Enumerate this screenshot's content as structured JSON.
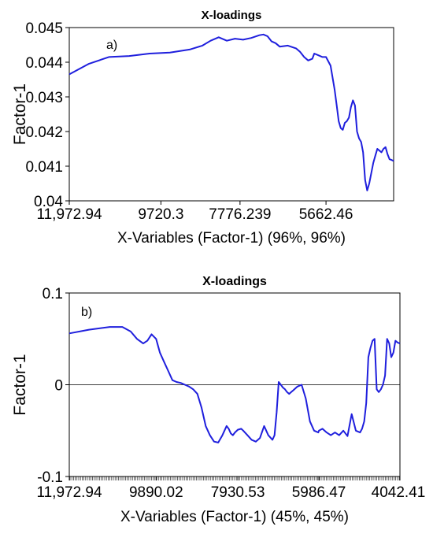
{
  "chart_data": [
    {
      "panel": "a)",
      "type": "line",
      "title": "X-loadings",
      "xlabel": "X-Variables (Factor-1) (96%, 96%)",
      "ylabel": "Factor-1",
      "ylim": [
        0.04,
        0.045
      ],
      "yticks": [
        "0.045",
        "0.044",
        "0.043",
        "0.042",
        "0.041",
        "0.04"
      ],
      "xlim": [
        11972.94,
        4000
      ],
      "xticks": [
        {
          "label": "11,972.94",
          "value": 11972.94
        },
        {
          "label": "9720.3",
          "value": 9720.3
        },
        {
          "label": "7776.239",
          "value": 7776.239
        },
        {
          "label": "5662.46",
          "value": 5662.46
        }
      ],
      "grid": false,
      "series": [
        {
          "color": "#1f1fdd",
          "x": [
            11972.94,
            11500,
            11000,
            10500,
            10000,
            9500,
            9000,
            8700,
            8500,
            8300,
            8100,
            7900,
            7700,
            7500,
            7300,
            7200,
            7100,
            7000,
            6900,
            6800,
            6600,
            6400,
            6300,
            6200,
            6100,
            6000,
            5950,
            5850,
            5750,
            5662,
            5550,
            5450,
            5400,
            5350,
            5300,
            5250,
            5200,
            5150,
            5100,
            5050,
            5000,
            4950,
            4900,
            4850,
            4800,
            4750,
            4700,
            4650,
            4600,
            4550,
            4500,
            4450,
            4400,
            4350,
            4300,
            4250,
            4200,
            4150,
            4100,
            4050,
            4000
          ],
          "values": [
            0.04365,
            0.04395,
            0.04415,
            0.04418,
            0.04425,
            0.04428,
            0.04437,
            0.04448,
            0.04462,
            0.04472,
            0.04462,
            0.04468,
            0.04465,
            0.0447,
            0.04478,
            0.0448,
            0.04475,
            0.0446,
            0.04455,
            0.04445,
            0.04448,
            0.0444,
            0.0443,
            0.04415,
            0.04405,
            0.0441,
            0.04425,
            0.0442,
            0.04415,
            0.04415,
            0.0439,
            0.0432,
            0.04275,
            0.0423,
            0.0421,
            0.04205,
            0.04225,
            0.0423,
            0.0424,
            0.0427,
            0.0429,
            0.04275,
            0.042,
            0.0418,
            0.0417,
            0.0414,
            0.0406,
            0.0403,
            0.0405,
            0.0408,
            0.0411,
            0.0413,
            0.0415,
            0.04145,
            0.0414,
            0.0415,
            0.04155,
            0.04135,
            0.0412,
            0.04118,
            0.04115
          ]
        }
      ]
    },
    {
      "panel": "b)",
      "type": "line",
      "title": "X-loadings",
      "xlabel": "X-Variables (Factor-1) (45%, 45%)",
      "ylabel": "Factor-1",
      "ylim": [
        -0.1,
        0.1
      ],
      "yticks": [
        "0.1",
        "0",
        "-0.1"
      ],
      "xlim": [
        11972.94,
        4042.41
      ],
      "xticks": [
        {
          "label": "11,972.94",
          "value": 11972.94
        },
        {
          "label": "9890.02",
          "value": 9890.02
        },
        {
          "label": "7930.53",
          "value": 7930.53
        },
        {
          "label": "5986.47",
          "value": 5986.47
        },
        {
          "label": "4042.41",
          "value": 4042.41
        }
      ],
      "zero_line": true,
      "grid": false,
      "series": [
        {
          "color": "#1f1fdd",
          "x": [
            11972.94,
            11500,
            11000,
            10700,
            10500,
            10350,
            10200,
            10100,
            10000,
            9890,
            9800,
            9700,
            9600,
            9500,
            9400,
            9300,
            9200,
            9100,
            9000,
            8900,
            8800,
            8700,
            8600,
            8500,
            8400,
            8300,
            8200,
            8150,
            8100,
            8050,
            8000,
            7930,
            7850,
            7800,
            7700,
            7600,
            7500,
            7400,
            7300,
            7200,
            7100,
            7050,
            7000,
            6950,
            6900,
            6850,
            6800,
            6750,
            6700,
            6650,
            6600,
            6500,
            6400,
            6300,
            6200,
            6100,
            6000,
            5986,
            5900,
            5800,
            5700,
            5600,
            5500,
            5400,
            5300,
            5200,
            5100,
            5000,
            4950,
            4900,
            4850,
            4800,
            4750,
            4700,
            4650,
            4600,
            4550,
            4500,
            4450,
            4400,
            4350,
            4300,
            4250,
            4200,
            4150,
            4100,
            4042.41
          ],
          "values": [
            0.056,
            0.06,
            0.063,
            0.063,
            0.058,
            0.05,
            0.045,
            0.048,
            0.055,
            0.05,
            0.035,
            0.025,
            0.015,
            0.005,
            0.003,
            0.002,
            0.0,
            -0.002,
            -0.005,
            -0.01,
            -0.025,
            -0.045,
            -0.055,
            -0.062,
            -0.063,
            -0.055,
            -0.045,
            -0.048,
            -0.053,
            -0.055,
            -0.052,
            -0.049,
            -0.048,
            -0.05,
            -0.055,
            -0.06,
            -0.062,
            -0.058,
            -0.045,
            -0.055,
            -0.06,
            -0.055,
            -0.03,
            0.003,
            0.0,
            -0.003,
            -0.005,
            -0.008,
            -0.01,
            -0.008,
            -0.006,
            -0.002,
            0.0,
            -0.015,
            -0.04,
            -0.05,
            -0.052,
            -0.05,
            -0.048,
            -0.052,
            -0.055,
            -0.052,
            -0.055,
            -0.05,
            -0.056,
            -0.032,
            -0.05,
            -0.052,
            -0.048,
            -0.04,
            -0.02,
            0.03,
            0.04,
            0.048,
            0.05,
            -0.005,
            -0.008,
            -0.005,
            0.0,
            0.01,
            0.05,
            0.045,
            0.03,
            0.035,
            0.048,
            0.046,
            0.045
          ]
        }
      ]
    }
  ]
}
